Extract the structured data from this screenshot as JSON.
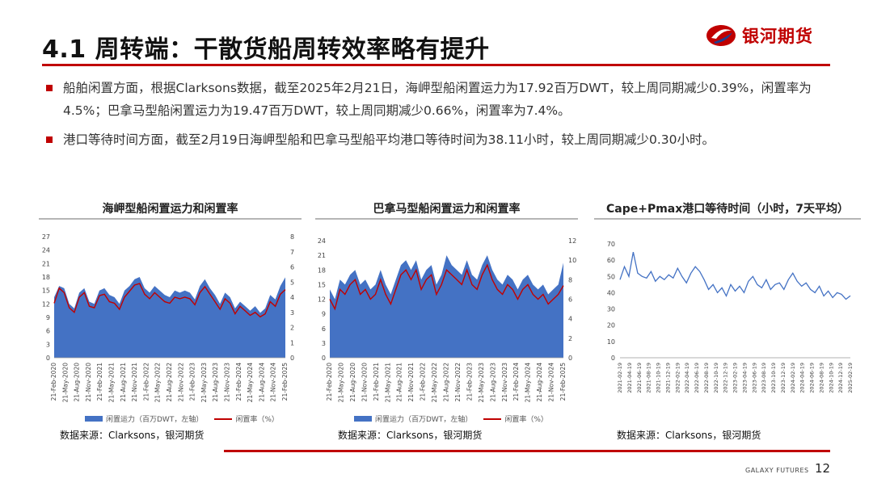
{
  "slide": {
    "title": "4.1 周转端：干散货船周转效率略有提升",
    "brand": "银河期货",
    "footer_brand": "GALAXY FUTURES",
    "page_number": "12",
    "accent_color": "#c00000",
    "bar_color": "#4472c4"
  },
  "bullets": [
    "船舶闲置方面，根据Clarksons数据，截至2025年2月21日，海岬型船闲置运力为17.92百万DWT，较上周同期减少0.39%，闲置率为4.5%；巴拿马型船闲置运力为19.47百万DWT，较上周同期减少0.66%，闲置率为7.4%。",
    "港口等待时间方面，截至2月19日海岬型船和巴拿马型船平均港口等待时间为38.11小时，较上周同期减少0.30小时。"
  ],
  "charts": [
    {
      "title": "海岬型船闲置运力和闲置率",
      "source": "数据来源：Clarksons，银河期货",
      "legend_bar": "闲置运力（百万DWT，左轴）",
      "legend_line": "闲置率（%）"
    },
    {
      "title": "巴拿马型船闲置运力和闲置率",
      "source": "数据来源：Clarksons，银河期货",
      "legend_bar": "闲置运力（百万DWT，左轴）",
      "legend_line": "闲置率（%）"
    },
    {
      "title": "Cape+Pmax港口等待时间（小时，7天平均）",
      "source": "数据来源：Clarksons，银河期货"
    }
  ],
  "chart_data": [
    {
      "type": "area",
      "ylim_left": [
        0,
        27
      ],
      "yticks_left": [
        "0",
        "3",
        "6",
        "9",
        "12",
        "15",
        "18",
        "21",
        "24",
        "27"
      ],
      "ylim_right": [
        0,
        8
      ],
      "yticks_right": [
        "0",
        "1",
        "2",
        "3",
        "4",
        "5",
        "6",
        "7",
        "8"
      ],
      "x_labels": [
        "21-Feb-2020",
        "21-May-2020",
        "21-Aug-2020",
        "21-Nov-2020",
        "21-Feb-2021",
        "21-May-2021",
        "21-Aug-2021",
        "21-Nov-2021",
        "21-Feb-2022",
        "21-May-2022",
        "21-Aug-2022",
        "21-Nov-2022",
        "21-Feb-2023",
        "21-May-2023",
        "21-Aug-2023",
        "21-Nov-2023",
        "21-Feb-2024",
        "21-May-2024",
        "21-Aug-2024",
        "21-Nov-2024",
        "21-Feb-2025"
      ],
      "series": [
        {
          "name": "闲置运力（百万DWT，左轴）",
          "axis": "left",
          "values": [
            13.5,
            16,
            15.5,
            12,
            11,
            14.5,
            15.5,
            12.5,
            12,
            15,
            15.5,
            14,
            13.5,
            12,
            15,
            16,
            17.5,
            18,
            15.5,
            14.5,
            16,
            15,
            14,
            13.5,
            15,
            14.5,
            15,
            14.5,
            13,
            16,
            17.5,
            15.5,
            14,
            12,
            14.5,
            13.5,
            11,
            12.5,
            11.5,
            10.5,
            11.5,
            10,
            11,
            14,
            13,
            16,
            17.92
          ]
        },
        {
          "name": "闲置率（%）",
          "axis": "right",
          "values": [
            3.6,
            4.6,
            4.3,
            3.3,
            3,
            4,
            4.3,
            3.4,
            3.3,
            4.1,
            4.2,
            3.7,
            3.6,
            3.2,
            4,
            4.4,
            4.8,
            4.9,
            4.2,
            3.9,
            4.3,
            4,
            3.7,
            3.6,
            4,
            3.9,
            4,
            3.9,
            3.5,
            4.3,
            4.7,
            4.2,
            3.7,
            3.2,
            3.9,
            3.6,
            2.9,
            3.4,
            3.1,
            2.8,
            3,
            2.7,
            2.9,
            3.7,
            3.4,
            4.2,
            4.5
          ]
        }
      ]
    },
    {
      "type": "area",
      "ylim_left": [
        0,
        24
      ],
      "yticks_left": [
        "0",
        "3",
        "6",
        "9",
        "12",
        "15",
        "18",
        "21",
        "24"
      ],
      "ylim_right": [
        0,
        12
      ],
      "yticks_right": [
        "0",
        "2",
        "4",
        "6",
        "8",
        "10",
        "12"
      ],
      "x_labels": [
        "21-Feb-2020",
        "21-May-2020",
        "21-Aug-2020",
        "21-Nov-2020",
        "21-Feb-2021",
        "21-May-2021",
        "21-Aug-2021",
        "21-Nov-2021",
        "21-Feb-2022",
        "21-May-2022",
        "21-Aug-2022",
        "21-Nov-2022",
        "21-Feb-2023",
        "21-May-2023",
        "21-Aug-2023",
        "21-Nov-2023",
        "21-Feb-2024",
        "21-May-2024",
        "21-Aug-2024",
        "21-Nov-2024",
        "21-Feb-2025"
      ],
      "series": [
        {
          "name": "闲置运力（百万DWT，左轴）",
          "axis": "left",
          "values": [
            14,
            12,
            16,
            15,
            17,
            18,
            15,
            16,
            14,
            15,
            18,
            15,
            13,
            16,
            19,
            20,
            18,
            20,
            16,
            18,
            19,
            15,
            17,
            21,
            19,
            18,
            17,
            20,
            17,
            16,
            19,
            21,
            18,
            16,
            15,
            17,
            16,
            14,
            16,
            17,
            15,
            14,
            15,
            13,
            14,
            15,
            19.47
          ]
        },
        {
          "name": "闲置率（%）",
          "axis": "right",
          "values": [
            6,
            5,
            7,
            6.5,
            7.5,
            8,
            6.5,
            7,
            6,
            6.5,
            8,
            6.5,
            5.5,
            7,
            8.5,
            9,
            8,
            9,
            7,
            8,
            8.5,
            6.5,
            7.5,
            9,
            8.5,
            8,
            7.5,
            9,
            7.5,
            7,
            8.5,
            9.5,
            8,
            7,
            6.5,
            7.5,
            7,
            6,
            7,
            7.5,
            6.5,
            6,
            6.5,
            5.5,
            6,
            6.5,
            7.4
          ]
        }
      ]
    },
    {
      "type": "line",
      "ylim": [
        0,
        70
      ],
      "yticks": [
        "0",
        "10",
        "20",
        "30",
        "40",
        "50",
        "60",
        "70"
      ],
      "x_labels": [
        "2021-02-19",
        "2021-04-19",
        "2021-06-19",
        "2021-08-19",
        "2021-10-19",
        "2021-12-19",
        "2022-02-19",
        "2022-04-19",
        "2022-06-19",
        "2022-08-19",
        "2022-10-19",
        "2022-12-19",
        "2023-02-19",
        "2023-04-19",
        "2023-06-19",
        "2023-08-19",
        "2023-10-19",
        "2023-12-19",
        "2024-02-19",
        "2024-04-19",
        "2024-06-19",
        "2024-08-19",
        "2024-10-19",
        "2024-12-19",
        "2025-02-19"
      ],
      "series": [
        {
          "name": "",
          "values": [
            48,
            56,
            50,
            65,
            52,
            50,
            49,
            53,
            47,
            50,
            48,
            51,
            49,
            55,
            50,
            46,
            52,
            56,
            53,
            48,
            42,
            45,
            40,
            43,
            38,
            45,
            41,
            44,
            40,
            47,
            50,
            45,
            43,
            48,
            42,
            45,
            46,
            42,
            48,
            52,
            47,
            44,
            46,
            42,
            40,
            44,
            38,
            41,
            37,
            40,
            39,
            36,
            38.11
          ]
        }
      ]
    }
  ]
}
